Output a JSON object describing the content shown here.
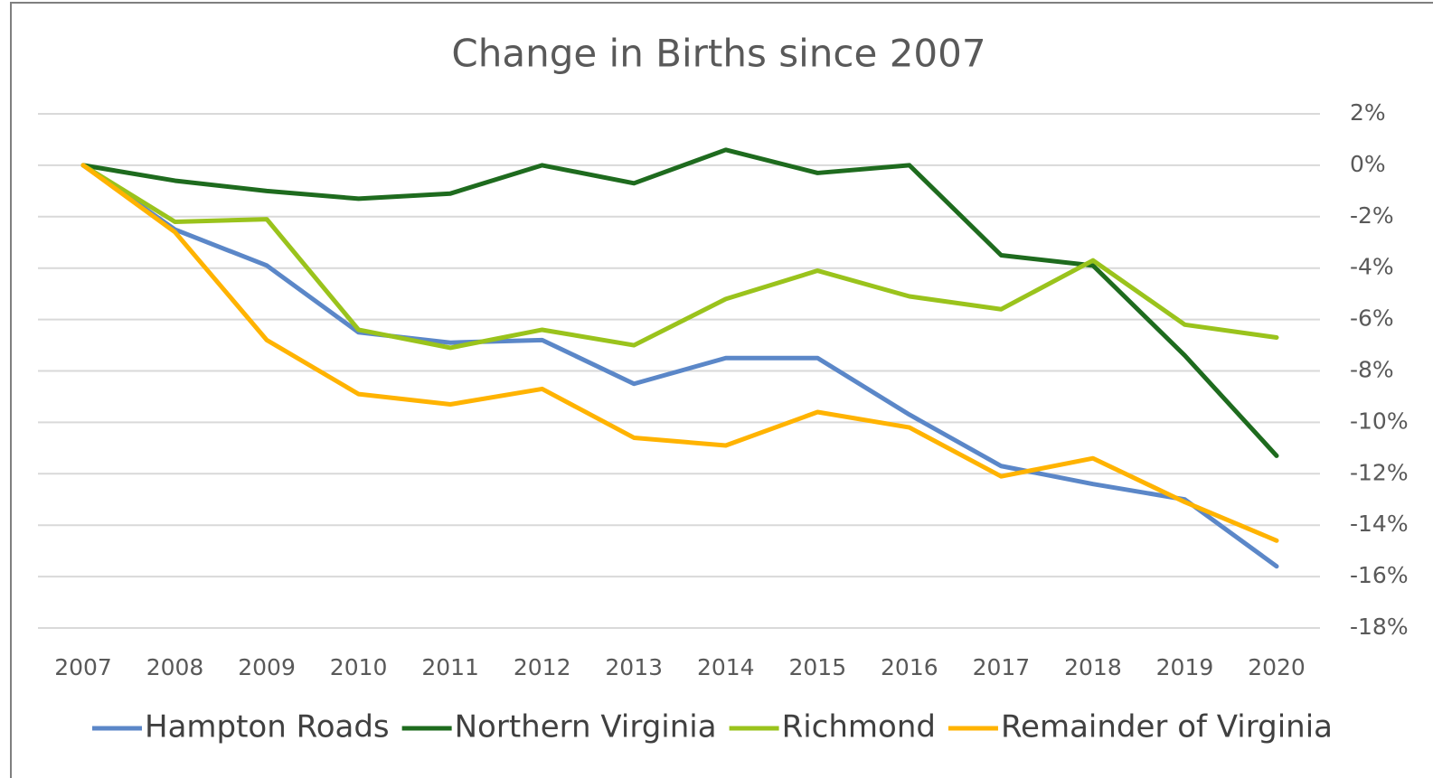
{
  "chart_data": {
    "type": "line",
    "title": "Change in Births since 2007",
    "categories": [
      "2007",
      "2008",
      "2009",
      "2010",
      "2011",
      "2012",
      "2013",
      "2014",
      "2015",
      "2016",
      "2017",
      "2018",
      "2019",
      "2020"
    ],
    "series": [
      {
        "name": "Hampton Roads",
        "color": "#5b87c8",
        "values": [
          0,
          -2.5,
          -3.9,
          -6.5,
          -6.9,
          -6.8,
          -8.5,
          -7.5,
          -7.5,
          -9.7,
          -11.7,
          -12.4,
          -13.0,
          -15.6
        ]
      },
      {
        "name": "Northern Virginia",
        "color": "#1e6b1e",
        "values": [
          0,
          -0.6,
          -1.0,
          -1.3,
          -1.1,
          0,
          -0.7,
          0.6,
          -0.3,
          0,
          -3.5,
          -3.9,
          -7.4,
          -11.3
        ]
      },
      {
        "name": "Richmond",
        "color": "#9ac31c",
        "values": [
          0,
          -2.2,
          -2.1,
          -6.4,
          -7.1,
          -6.4,
          -7.0,
          -5.2,
          -4.1,
          -5.1,
          -5.6,
          -3.7,
          -6.2,
          -6.7
        ]
      },
      {
        "name": "Remainder of Virginia",
        "color": "#ffb300",
        "values": [
          0,
          -2.6,
          -6.8,
          -8.9,
          -9.3,
          -8.7,
          -10.6,
          -10.9,
          -9.6,
          -10.2,
          -12.1,
          -11.4,
          -13.1,
          -14.6
        ]
      }
    ],
    "ylim": [
      -18,
      2
    ],
    "yticks": [
      {
        "value": 2,
        "label": "2%"
      },
      {
        "value": 0,
        "label": "0%"
      },
      {
        "value": -2,
        "label": "-2%"
      },
      {
        "value": -4,
        "label": "-4%"
      },
      {
        "value": -6,
        "label": "-6%"
      },
      {
        "value": -8,
        "label": "-8%"
      },
      {
        "value": -10,
        "label": "-10%"
      },
      {
        "value": -12,
        "label": "-12%"
      },
      {
        "value": -14,
        "label": "-14%"
      },
      {
        "value": -16,
        "label": "-16%"
      },
      {
        "value": -18,
        "label": "-18%"
      }
    ],
    "grid": true,
    "legend": "bottom"
  }
}
